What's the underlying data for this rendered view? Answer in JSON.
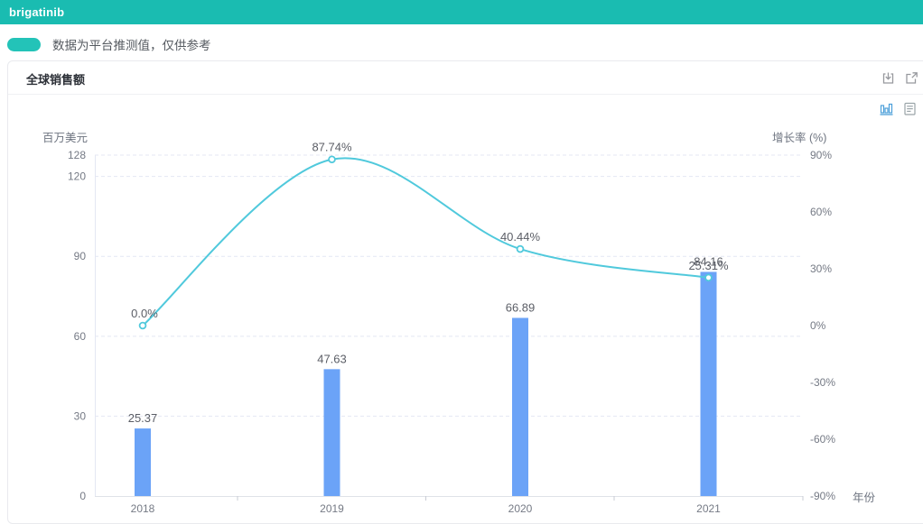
{
  "header": {
    "title": "brigatinib"
  },
  "legend": {
    "swatch_color": "#23c3b8",
    "note": "数据为平台推测值，仅供参考"
  },
  "panel": {
    "title": "全球销售额",
    "header_icons": [
      "download-icon",
      "external-link-icon"
    ],
    "view_icons": [
      "bar-chart-view-icon",
      "data-view-icon"
    ],
    "accent_colors": {
      "topbar": "#1abcb1",
      "active_view_icon": "#4a9ed9",
      "inactive_view_icon": "#9aa4a8"
    }
  },
  "chart_data": {
    "type": "bar",
    "subtype": "bar-line-combo",
    "title": "全球销售额",
    "categories": [
      "2018",
      "2019",
      "2020",
      "2021"
    ],
    "series": [
      {
        "name": "全球销售额",
        "type": "bar",
        "axis": "left",
        "values": [
          25.37,
          47.63,
          66.89,
          84.16
        ],
        "labels": [
          "25.37",
          "47.63",
          "66.89",
          "84.16"
        ],
        "color": "#6ba3f7"
      },
      {
        "name": "增长率",
        "type": "line",
        "axis": "right",
        "values": [
          0.0,
          87.74,
          40.44,
          25.31
        ],
        "labels": [
          "0.0%",
          "87.74%",
          "40.44%",
          "25.31%"
        ],
        "color": "#50c9dc"
      }
    ],
    "left_axis": {
      "name": "百万美元",
      "range": [
        0,
        128
      ],
      "ticks": [
        0,
        30,
        60,
        90,
        120,
        128
      ]
    },
    "right_axis": {
      "name": "增长率 (%)",
      "range": [
        -90,
        90
      ],
      "ticks": [
        -90,
        -60,
        -30,
        0,
        30,
        60,
        90
      ],
      "suffix": "%"
    },
    "x_axis": {
      "name": "年份"
    },
    "grid": "dashed horizontal lines at left-axis ticks",
    "legend_position": "none"
  }
}
